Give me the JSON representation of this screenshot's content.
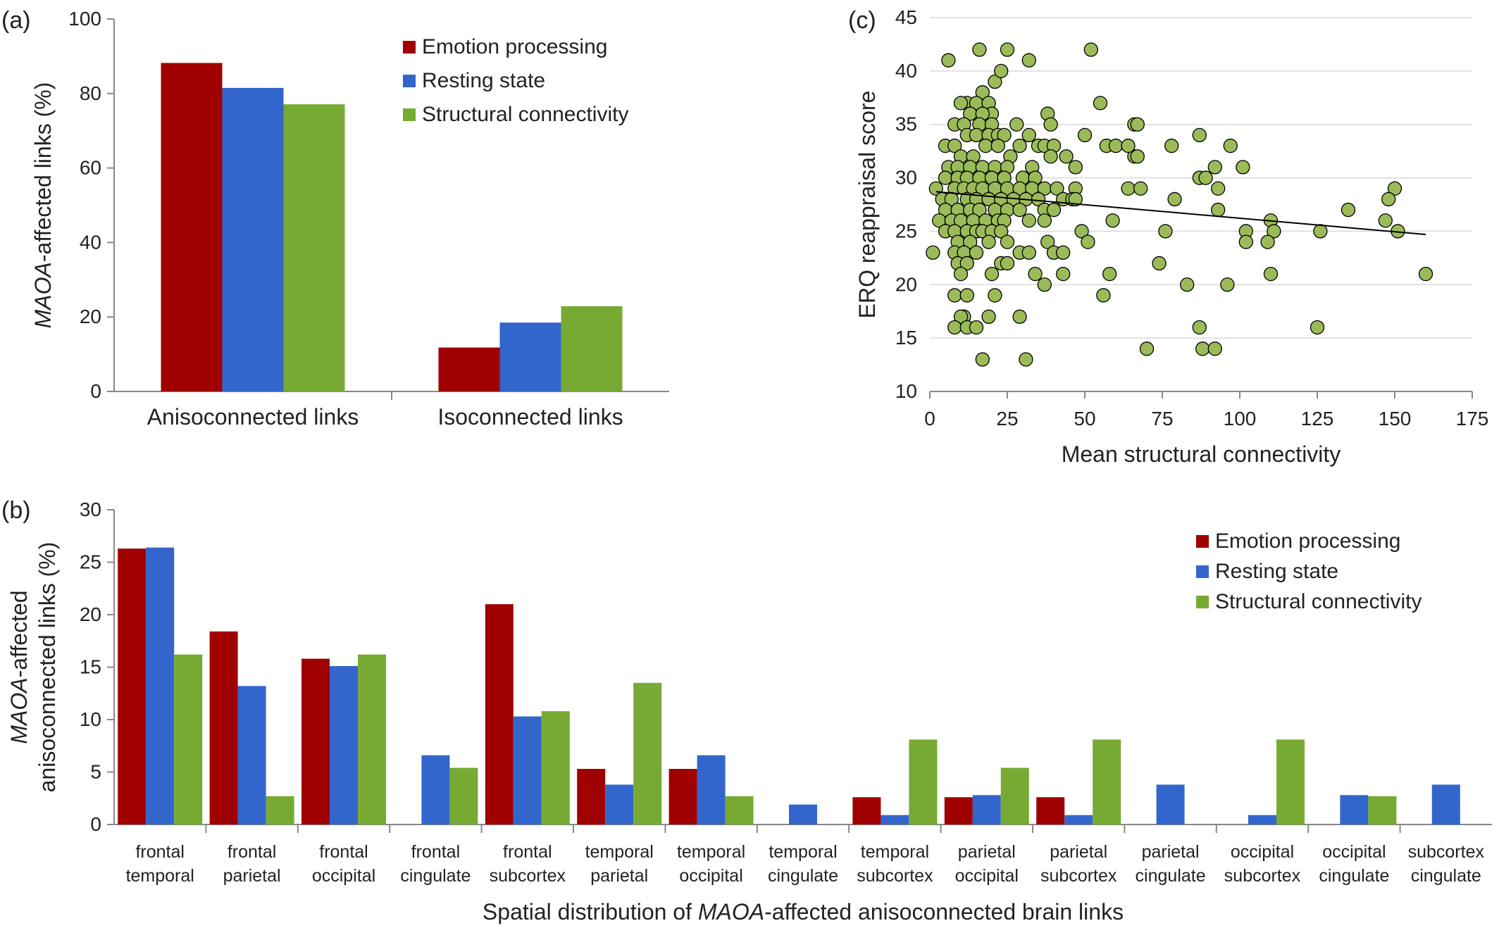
{
  "colors": {
    "emotion": "#A00000",
    "resting": "#3366CC",
    "structural": "#77AA33",
    "scatter_fill": "#9BBB59",
    "axis": "#888888",
    "grid": "#D9D9D9"
  },
  "chart_data": [
    {
      "panel": "(a)",
      "type": "bar",
      "ylabel_italic": "MAOA",
      "ylabel_rest": "-affected links (%)",
      "ylim": [
        0,
        100
      ],
      "yticks": [
        0,
        20,
        40,
        60,
        80,
        100
      ],
      "categories": [
        "Anisoconnected links",
        "Isoconnected links"
      ],
      "series": [
        {
          "name": "Emotion processing",
          "values": [
            88.2,
            11.8
          ]
        },
        {
          "name": "Resting state",
          "values": [
            81.5,
            18.5
          ]
        },
        {
          "name": "Structural connectivity",
          "values": [
            77.1,
            22.9
          ]
        }
      ],
      "legend": "top-right",
      "grid": false
    },
    {
      "panel": "(b)",
      "type": "bar",
      "ylabel_line1_italic": "MAOA",
      "ylabel_line1_rest": "-affected",
      "ylabel_line2": "anisoconnected links (%)",
      "xlabel_pre": "Spatial distribution of ",
      "xlabel_italic": "MAOA",
      "xlabel_post": "-affected  anisoconnected brain links",
      "ylim": [
        0,
        30
      ],
      "yticks": [
        0,
        5,
        10,
        15,
        20,
        25,
        30
      ],
      "categories": [
        [
          "frontal",
          "temporal"
        ],
        [
          "frontal",
          "parietal"
        ],
        [
          "frontal",
          "occipital"
        ],
        [
          "frontal",
          "cingulate"
        ],
        [
          "frontal",
          "subcortex"
        ],
        [
          "temporal",
          "parietal"
        ],
        [
          "temporal",
          "occipital"
        ],
        [
          "temporal",
          "cingulate"
        ],
        [
          "temporal",
          "subcortex"
        ],
        [
          "parietal",
          "occipital"
        ],
        [
          "parietal",
          "subcortex"
        ],
        [
          "parietal",
          "cingulate"
        ],
        [
          "occipital",
          "subcortex"
        ],
        [
          "occipital",
          "cingulate"
        ],
        [
          "subcortex",
          "cingulate"
        ]
      ],
      "series": [
        {
          "name": "Emotion processing",
          "values": [
            26.3,
            18.4,
            15.8,
            0,
            21.0,
            5.3,
            5.3,
            0,
            2.6,
            2.6,
            2.6,
            0,
            0,
            0,
            0
          ]
        },
        {
          "name": "Resting state",
          "values": [
            26.4,
            13.2,
            15.1,
            6.6,
            10.3,
            3.8,
            6.6,
            1.9,
            0.9,
            2.8,
            0.9,
            3.8,
            0.9,
            2.8,
            3.8
          ]
        },
        {
          "name": "Structural connectivity",
          "values": [
            16.2,
            2.7,
            16.2,
            5.4,
            10.8,
            13.5,
            2.7,
            0,
            8.1,
            5.4,
            8.1,
            0,
            8.1,
            2.7,
            0
          ]
        }
      ],
      "legend": "top-right",
      "grid": false
    },
    {
      "panel": "(c)",
      "type": "scatter",
      "xlabel": "Mean structural connectivity",
      "ylabel": "ERQ reappraisal score",
      "xlim": [
        0,
        175
      ],
      "ylim": [
        10,
        45
      ],
      "xticks": [
        0,
        25,
        50,
        75,
        100,
        125,
        150,
        175
      ],
      "yticks": [
        10,
        15,
        20,
        25,
        30,
        35,
        40,
        45
      ],
      "grid": true,
      "trendline": {
        "x": [
          2,
          160
        ],
        "y": [
          28.7,
          24.7
        ]
      },
      "points": [
        [
          6,
          41
        ],
        [
          16,
          42
        ],
        [
          25,
          42
        ],
        [
          32,
          41
        ],
        [
          52,
          42
        ],
        [
          21,
          39
        ],
        [
          23,
          40
        ],
        [
          17,
          38
        ],
        [
          12,
          37
        ],
        [
          15,
          37
        ],
        [
          10,
          37
        ],
        [
          19,
          37
        ],
        [
          20,
          36
        ],
        [
          13,
          36
        ],
        [
          17,
          36
        ],
        [
          38,
          36
        ],
        [
          55,
          37
        ],
        [
          8,
          35
        ],
        [
          11,
          35
        ],
        [
          16,
          35
        ],
        [
          20,
          35
        ],
        [
          28,
          35
        ],
        [
          39,
          35
        ],
        [
          66,
          35
        ],
        [
          67,
          35
        ],
        [
          5,
          33
        ],
        [
          8,
          33
        ],
        [
          12,
          34
        ],
        [
          15,
          34
        ],
        [
          19,
          34
        ],
        [
          22,
          34
        ],
        [
          24,
          34
        ],
        [
          32,
          34
        ],
        [
          50,
          34
        ],
        [
          57,
          33
        ],
        [
          66,
          32
        ],
        [
          67,
          32
        ],
        [
          87,
          34
        ],
        [
          10,
          32
        ],
        [
          14,
          32
        ],
        [
          18,
          33
        ],
        [
          22,
          33
        ],
        [
          26,
          32
        ],
        [
          29,
          33
        ],
        [
          35,
          33
        ],
        [
          37,
          33
        ],
        [
          40,
          33
        ],
        [
          44,
          32
        ],
        [
          60,
          33
        ],
        [
          64,
          33
        ],
        [
          78,
          33
        ],
        [
          97,
          33
        ],
        [
          6,
          31
        ],
        [
          9,
          31
        ],
        [
          13,
          31
        ],
        [
          17,
          31
        ],
        [
          21,
          31
        ],
        [
          25,
          31
        ],
        [
          33,
          31
        ],
        [
          39,
          32
        ],
        [
          47,
          31
        ],
        [
          64,
          29
        ],
        [
          68,
          29
        ],
        [
          92,
          31
        ],
        [
          101,
          31
        ],
        [
          5,
          30
        ],
        [
          9,
          30
        ],
        [
          12,
          30
        ],
        [
          16,
          30
        ],
        [
          20,
          30
        ],
        [
          24,
          30
        ],
        [
          30,
          30
        ],
        [
          34,
          30
        ],
        [
          87,
          30
        ],
        [
          89,
          30
        ],
        [
          2,
          29
        ],
        [
          8,
          29
        ],
        [
          11,
          29
        ],
        [
          14,
          29
        ],
        [
          17,
          29
        ],
        [
          21,
          29
        ],
        [
          25,
          29
        ],
        [
          29,
          29
        ],
        [
          33,
          29
        ],
        [
          37,
          29
        ],
        [
          41,
          29
        ],
        [
          47,
          29
        ],
        [
          93,
          29
        ],
        [
          150,
          29
        ],
        [
          4,
          28
        ],
        [
          7,
          28
        ],
        [
          12,
          28
        ],
        [
          15,
          28
        ],
        [
          19,
          28
        ],
        [
          23,
          28
        ],
        [
          27,
          28
        ],
        [
          31,
          28
        ],
        [
          35,
          28
        ],
        [
          43,
          28
        ],
        [
          46,
          28
        ],
        [
          47,
          28
        ],
        [
          79,
          28
        ],
        [
          148,
          28
        ],
        [
          5,
          27
        ],
        [
          9,
          27
        ],
        [
          13,
          27
        ],
        [
          16,
          27
        ],
        [
          21,
          27
        ],
        [
          25,
          27
        ],
        [
          29,
          27
        ],
        [
          37,
          27
        ],
        [
          40,
          27
        ],
        [
          93,
          27
        ],
        [
          135,
          27
        ],
        [
          3,
          26
        ],
        [
          7,
          26
        ],
        [
          10,
          26
        ],
        [
          14,
          26
        ],
        [
          18,
          26
        ],
        [
          22,
          26
        ],
        [
          24,
          26
        ],
        [
          32,
          26
        ],
        [
          37,
          26
        ],
        [
          59,
          26
        ],
        [
          110,
          26
        ],
        [
          147,
          26
        ],
        [
          5,
          25
        ],
        [
          8,
          25
        ],
        [
          12,
          25
        ],
        [
          15,
          25
        ],
        [
          17,
          25
        ],
        [
          20,
          25
        ],
        [
          23,
          25
        ],
        [
          49,
          25
        ],
        [
          76,
          25
        ],
        [
          102,
          25
        ],
        [
          111,
          25
        ],
        [
          126,
          25
        ],
        [
          151,
          25
        ],
        [
          9,
          24
        ],
        [
          13,
          24
        ],
        [
          19,
          24
        ],
        [
          25,
          24
        ],
        [
          38,
          24
        ],
        [
          51,
          24
        ],
        [
          102,
          24
        ],
        [
          109,
          24
        ],
        [
          1,
          23
        ],
        [
          8,
          23
        ],
        [
          11,
          23
        ],
        [
          15,
          23
        ],
        [
          29,
          23
        ],
        [
          32,
          23
        ],
        [
          40,
          23
        ],
        [
          43,
          23
        ],
        [
          9,
          22
        ],
        [
          12,
          22
        ],
        [
          23,
          22
        ],
        [
          25,
          22
        ],
        [
          74,
          22
        ],
        [
          10,
          21
        ],
        [
          20,
          21
        ],
        [
          34,
          21
        ],
        [
          43,
          21
        ],
        [
          58,
          21
        ],
        [
          110,
          21
        ],
        [
          160,
          21
        ],
        [
          37,
          20
        ],
        [
          83,
          20
        ],
        [
          96,
          20
        ],
        [
          8,
          19
        ],
        [
          12,
          19
        ],
        [
          21,
          19
        ],
        [
          56,
          19
        ],
        [
          11,
          17
        ],
        [
          19,
          17
        ],
        [
          29,
          17
        ],
        [
          10,
          17
        ],
        [
          8,
          16
        ],
        [
          12,
          16
        ],
        [
          15,
          16
        ],
        [
          87,
          16
        ],
        [
          125,
          16
        ],
        [
          70,
          14
        ],
        [
          88,
          14
        ],
        [
          92,
          14
        ],
        [
          17,
          13
        ],
        [
          31,
          13
        ]
      ]
    }
  ]
}
